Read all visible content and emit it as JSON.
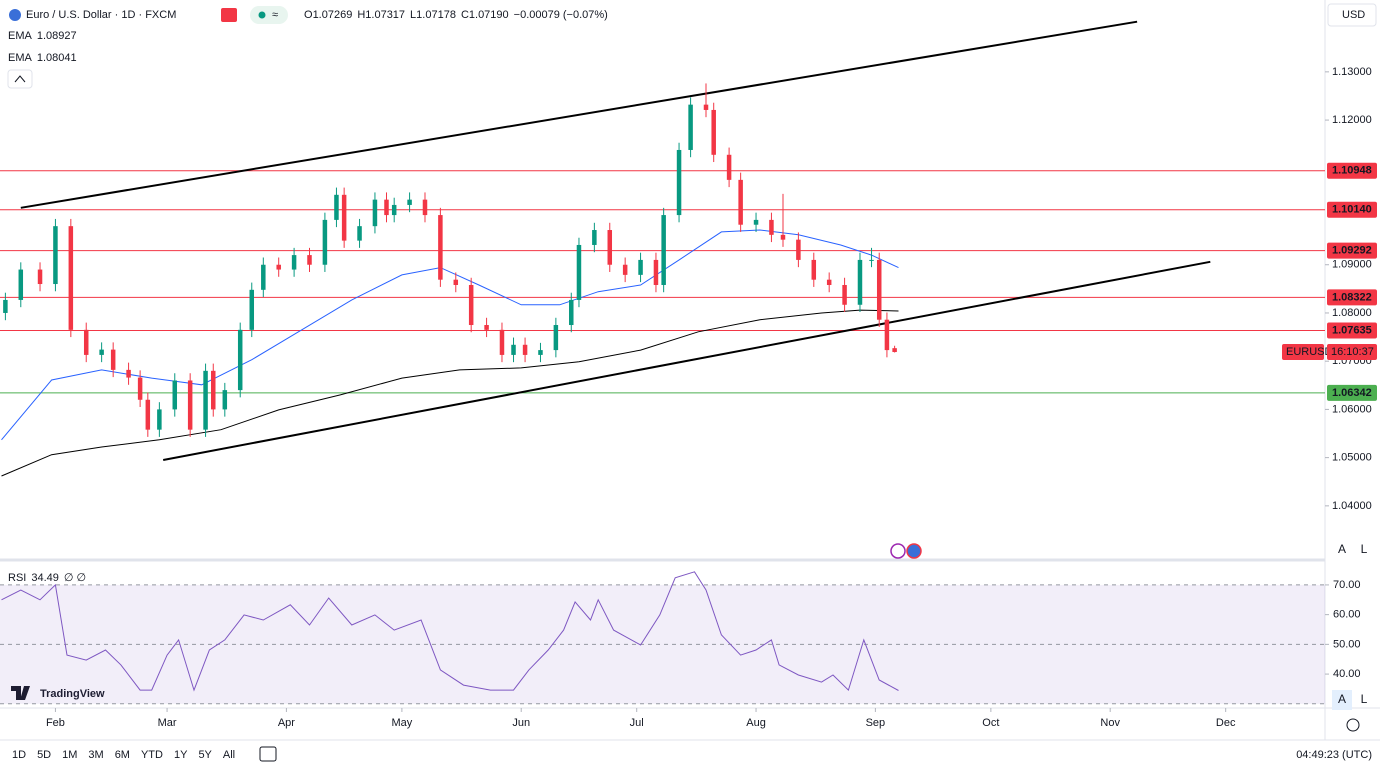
{
  "header": {
    "ohlc": [
      {
        "key": "O",
        "value": "1.07269"
      },
      {
        "key": "H",
        "value": "1.07317"
      },
      {
        "key": "L",
        "value": "1.07178"
      },
      {
        "key": "C",
        "value": "1.07190"
      }
    ],
    "change": "−0.00079 (−0.07%)",
    "currency": "USD",
    "logo": "TradingView",
    "scale_buttons": [
      "A",
      "L"
    ]
  },
  "toolbar": {
    "ranges": [
      "1D",
      "5D",
      "1M",
      "3M",
      "6M",
      "YTD",
      "1Y",
      "5Y",
      "All"
    ],
    "clock": "04:49:23 (UTC)"
  },
  "chart_data": [
    {
      "type": "candlestick",
      "title": "Euro / U.S. Dollar · 1D · FXCM",
      "up_color": "#089981",
      "down_color": "#f23645",
      "x": [
        18,
        22,
        27,
        31,
        35,
        39,
        43,
        46,
        50,
        53,
        55,
        58,
        62,
        66,
        70,
        72,
        75,
        79,
        82,
        85,
        89,
        93,
        97,
        101,
        104,
        106,
        110,
        114,
        117,
        119,
        123,
        127,
        131,
        135,
        139,
        143,
        147,
        150,
        153,
        157,
        161,
        165,
        167,
        171,
        175,
        179,
        183,
        187,
        189,
        193,
        196,
        200,
        202,
        206,
        209,
        213,
        217,
        220,
        224,
        228,
        232,
        236,
        240,
        243,
        245,
        247,
        249
      ],
      "open": [
        1.08,
        1.0827,
        1.089,
        1.086,
        1.098,
        1.0765,
        1.0713,
        1.0724,
        1.0682,
        1.0666,
        1.062,
        1.0558,
        1.06,
        1.066,
        1.0558,
        1.068,
        1.06,
        1.064,
        1.0765,
        1.0848,
        1.09,
        1.089,
        1.092,
        1.09,
        1.0993,
        1.1045,
        1.095,
        1.098,
        1.1035,
        1.1003,
        1.1024,
        1.1035,
        1.1003,
        1.0869,
        1.0858,
        1.0775,
        1.0765,
        1.0713,
        1.0734,
        1.0713,
        1.0723,
        1.0775,
        1.0827,
        1.0941,
        1.0972,
        1.09,
        1.0879,
        1.091,
        1.0858,
        1.1003,
        1.1138,
        1.1232,
        1.1221,
        1.1128,
        1.1076,
        1.0983,
        1.0993,
        1.0962,
        1.0952,
        1.091,
        1.0869,
        1.0858,
        1.0817,
        1.091,
        1.091,
        1.0786,
        1.0727
      ],
      "high": [
        1.0842,
        1.0905,
        1.0905,
        1.0995,
        1.0995,
        1.078,
        1.0739,
        1.0739,
        1.0697,
        1.0681,
        1.0635,
        1.0615,
        1.0675,
        1.0675,
        1.0695,
        1.0695,
        1.0655,
        1.078,
        1.0863,
        1.0915,
        1.0915,
        1.0935,
        1.0935,
        1.1008,
        1.106,
        1.106,
        1.0995,
        1.105,
        1.105,
        1.1039,
        1.105,
        1.105,
        1.1018,
        1.0884,
        1.0873,
        1.079,
        1.078,
        1.0749,
        1.0749,
        1.0738,
        1.079,
        1.0842,
        1.0956,
        1.0987,
        1.0987,
        1.0915,
        1.0925,
        1.0925,
        1.1018,
        1.1153,
        1.1247,
        1.1276,
        1.1236,
        1.1143,
        1.1091,
        1.1008,
        1.1008,
        1.1047,
        1.0967,
        1.0925,
        1.0884,
        1.0873,
        1.0925,
        1.0935,
        1.0925,
        1.0801,
        1.0732
      ],
      "low": [
        1.0785,
        1.0812,
        1.0845,
        1.0845,
        1.075,
        1.0698,
        1.0698,
        1.0667,
        1.0651,
        1.0605,
        1.0543,
        1.0543,
        1.0585,
        1.0543,
        1.0543,
        1.0585,
        1.0585,
        1.0625,
        1.075,
        1.0833,
        1.0875,
        1.0875,
        1.0885,
        1.0885,
        1.0978,
        1.0935,
        1.0935,
        1.0965,
        1.0988,
        1.0988,
        1.1009,
        1.0988,
        1.0854,
        1.0843,
        1.076,
        1.075,
        1.0698,
        1.0698,
        1.0698,
        1.0698,
        1.0708,
        1.076,
        1.0812,
        1.0926,
        1.0885,
        1.0864,
        1.0864,
        1.0843,
        1.0843,
        1.0988,
        1.1123,
        1.1206,
        1.1113,
        1.1061,
        1.0968,
        1.0968,
        1.0947,
        1.0937,
        1.0895,
        1.0854,
        1.0843,
        1.0802,
        1.0802,
        1.0895,
        1.0771,
        1.0708,
        1.0718
      ],
      "close": [
        1.0827,
        1.089,
        1.086,
        1.098,
        1.0765,
        1.0713,
        1.0724,
        1.0682,
        1.0666,
        1.062,
        1.0558,
        1.06,
        1.066,
        1.0558,
        1.068,
        1.06,
        1.064,
        1.0765,
        1.0848,
        1.09,
        1.089,
        1.092,
        1.09,
        1.0993,
        1.1045,
        1.095,
        1.098,
        1.1035,
        1.1003,
        1.1024,
        1.1035,
        1.1003,
        1.0869,
        1.0858,
        1.0775,
        1.0765,
        1.0713,
        1.0734,
        1.0713,
        1.0723,
        1.0775,
        1.0827,
        1.0941,
        1.0972,
        1.09,
        1.0879,
        1.091,
        1.0858,
        1.1003,
        1.1138,
        1.1232,
        1.1221,
        1.1128,
        1.1076,
        1.0983,
        1.0993,
        1.0962,
        1.0952,
        1.091,
        1.0869,
        1.0858,
        1.0817,
        1.091,
        1.091,
        1.0786,
        1.0723,
        1.0719
      ],
      "series": [
        {
          "name": "EMA",
          "value_label": "1.08927",
          "color": "#2962ff",
          "x": [
            17,
            30,
            43,
            56,
            69,
            82,
            95,
            108,
            121,
            131,
            141,
            152,
            162,
            172,
            183,
            193,
            204,
            214,
            224,
            235,
            243,
            250
          ],
          "values": [
            1.0537,
            1.0661,
            1.0682,
            1.0665,
            1.0651,
            1.0703,
            1.0765,
            1.0827,
            1.0879,
            1.0894,
            1.0858,
            1.0817,
            1.0817,
            1.0844,
            1.0858,
            1.091,
            1.0968,
            1.0972,
            1.0962,
            1.0941,
            1.092,
            1.0894
          ]
        },
        {
          "name": "EMA",
          "value_label": "1.08041",
          "color": "#000000",
          "x": [
            17,
            30,
            43,
            58,
            74,
            89,
            105,
            121,
            136,
            152,
            167,
            183,
            198,
            214,
            230,
            240,
            250
          ],
          "values": [
            1.0462,
            1.0506,
            1.0522,
            1.0537,
            1.0558,
            1.0599,
            1.063,
            1.0665,
            1.0682,
            1.0686,
            1.0699,
            1.0723,
            1.0761,
            1.0786,
            1.08,
            1.0806,
            1.0804
          ]
        }
      ],
      "trendlines": [
        {
          "x": [
            22,
            312
          ],
          "values": [
            1.1018,
            1.1404
          ]
        },
        {
          "x": [
            59,
            331
          ],
          "values": [
            1.0495,
            1.0906
          ]
        }
      ],
      "levels": [
        {
          "value": 1.10948,
          "label": "1.10948",
          "color": "#f23645"
        },
        {
          "value": 1.1014,
          "label": "1.10140",
          "color": "#f23645"
        },
        {
          "value": 1.09292,
          "label": "1.09292",
          "color": "#f23645"
        },
        {
          "value": 1.08322,
          "label": "1.08322",
          "color": "#f23645"
        },
        {
          "value": 1.07635,
          "label": "1.07635",
          "color": "#f23645"
        },
        {
          "value": 1.06342,
          "label": "1.06342",
          "color": "#4caf50"
        }
      ],
      "symbol_tag": "EURUSD",
      "countdown": "16:10:37",
      "xlim": [
        16.6,
        360.8
      ],
      "ylim": [
        1.0296,
        1.1449
      ],
      "xticks": [
        {
          "value": 31,
          "label": "Feb"
        },
        {
          "value": 60,
          "label": "Mar"
        },
        {
          "value": 91,
          "label": "Apr"
        },
        {
          "value": 121,
          "label": "May"
        },
        {
          "value": 152,
          "label": "Jun"
        },
        {
          "value": 182,
          "label": "Jul"
        },
        {
          "value": 213,
          "label": "Aug"
        },
        {
          "value": 244,
          "label": "Sep"
        },
        {
          "value": 274,
          "label": "Oct"
        },
        {
          "value": 305,
          "label": "Nov"
        },
        {
          "value": 335,
          "label": "Dec"
        }
      ],
      "yticks": [
        {
          "value": 1.13,
          "label": "1.13000"
        },
        {
          "value": 1.12,
          "label": "1.12000"
        },
        {
          "value": 1.09,
          "label": "1.09000"
        },
        {
          "value": 1.08,
          "label": "1.08000"
        },
        {
          "value": 1.07,
          "label": "1.07000"
        },
        {
          "value": 1.06,
          "label": "1.06000"
        },
        {
          "value": 1.05,
          "label": "1.05000"
        },
        {
          "value": 1.04,
          "label": "1.04000"
        }
      ]
    },
    {
      "type": "line",
      "title": "RSI",
      "value_label": "34.49",
      "inputs": "∅ ∅",
      "color": "#7e57c2",
      "x": [
        17,
        22,
        27,
        31,
        34,
        39,
        44,
        48,
        53,
        56,
        60,
        63,
        67,
        71,
        75,
        80,
        85,
        92,
        97,
        102,
        108,
        114,
        119,
        126,
        131,
        137,
        144,
        150,
        154,
        159,
        163,
        166,
        170,
        172,
        176,
        183,
        188,
        192,
        197,
        200,
        204,
        209,
        213,
        217,
        219,
        224,
        230,
        233,
        237,
        241,
        245,
        250
      ],
      "values": [
        65.0,
        68.3,
        65.0,
        70.0,
        46.4,
        44.7,
        48.1,
        43.1,
        34.6,
        34.6,
        46.4,
        51.5,
        34.6,
        48.1,
        51.5,
        59.9,
        58.2,
        63.3,
        56.5,
        65.6,
        56.5,
        59.9,
        54.8,
        58.2,
        41.4,
        36.3,
        34.6,
        34.6,
        41.4,
        48.1,
        54.8,
        64.3,
        58.2,
        65.0,
        54.8,
        49.8,
        59.9,
        72.4,
        74.4,
        68.3,
        53.2,
        46.4,
        48.1,
        51.5,
        43.1,
        39.7,
        37.3,
        39.7,
        34.6,
        51.5,
        38.0,
        34.49
      ],
      "hlines": [
        70,
        50,
        30
      ],
      "xlim": [
        16.6,
        360.8
      ],
      "ylim": [
        29.6,
        76.7
      ],
      "yticks": [
        {
          "value": 70,
          "label": "70.00"
        },
        {
          "value": 60,
          "label": "60.00"
        },
        {
          "value": 50,
          "label": "50.00"
        },
        {
          "value": 40,
          "label": "40.00"
        }
      ]
    }
  ]
}
